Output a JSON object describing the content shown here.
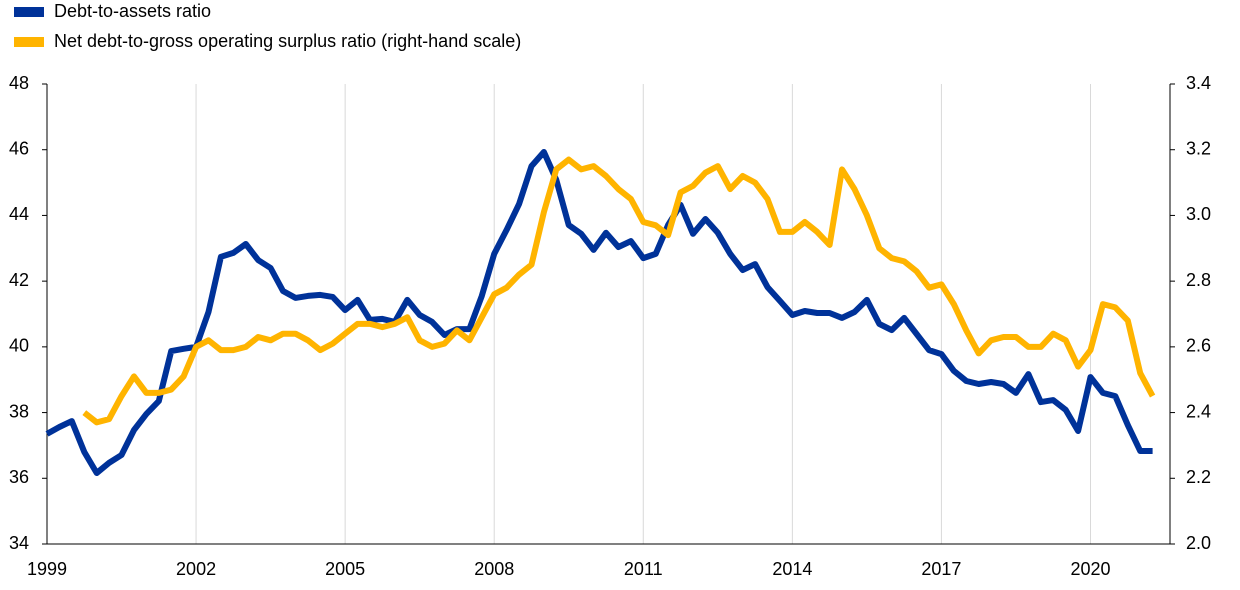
{
  "chart_data": {
    "type": "line",
    "x": [
      1999,
      1999.25,
      1999.5,
      1999.75,
      2000,
      2000.25,
      2000.5,
      2000.75,
      2001,
      2001.25,
      2001.5,
      2001.75,
      2002,
      2002.25,
      2002.5,
      2002.75,
      2003,
      2003.25,
      2003.5,
      2003.75,
      2004,
      2004.25,
      2004.5,
      2004.75,
      2005,
      2005.25,
      2005.5,
      2005.75,
      2006,
      2006.25,
      2006.5,
      2006.75,
      2007,
      2007.25,
      2007.5,
      2007.75,
      2008,
      2008.25,
      2008.5,
      2008.75,
      2009,
      2009.25,
      2009.5,
      2009.75,
      2010,
      2010.25,
      2010.5,
      2010.75,
      2011,
      2011.25,
      2011.5,
      2011.75,
      2012,
      2012.25,
      2012.5,
      2012.75,
      2013,
      2013.25,
      2013.5,
      2013.75,
      2014,
      2014.25,
      2014.5,
      2014.75,
      2015,
      2015.25,
      2015.5,
      2015.75,
      2016,
      2016.25,
      2016.5,
      2016.75,
      2017,
      2017.25,
      2017.5,
      2017.75,
      2018,
      2018.25,
      2018.5,
      2018.75,
      2019,
      2019.25,
      2019.5,
      2019.75,
      2020,
      2020.25,
      2020.5,
      2020.75,
      2021,
      2021.25
    ],
    "series": [
      {
        "name": "Debt-to-assets ratio",
        "color": "#003299",
        "values": [
          37.35,
          37.56,
          37.74,
          36.8,
          36.16,
          36.47,
          36.71,
          37.47,
          37.96,
          38.35,
          39.87,
          39.94,
          40.0,
          41.06,
          42.74,
          42.86,
          43.13,
          42.64,
          42.4,
          41.7,
          41.49,
          41.55,
          41.58,
          41.52,
          41.12,
          41.43,
          40.82,
          40.85,
          40.76,
          41.43,
          40.97,
          40.76,
          40.36,
          40.54,
          40.54,
          41.55,
          42.83,
          43.56,
          44.35,
          45.5,
          45.93,
          45.08,
          43.71,
          43.44,
          42.95,
          43.47,
          43.04,
          43.22,
          42.7,
          42.83,
          43.71,
          44.32,
          43.44,
          43.89,
          43.47,
          42.83,
          42.34,
          42.52,
          41.82,
          41.4,
          40.97,
          41.09,
          41.03,
          41.03,
          40.88,
          41.06,
          41.43,
          40.7,
          40.51,
          40.88,
          40.39,
          39.9,
          39.78,
          39.27,
          38.96,
          38.87,
          38.93,
          38.87,
          38.6,
          39.17,
          38.32,
          38.38,
          38.08,
          37.44,
          39.08,
          38.6,
          38.5,
          37.62,
          36.83,
          36.83
        ]
      },
      {
        "name": "Net debt-to-gross operating surplus ratio (right-hand scale)",
        "color": "#ffb400",
        "axis": "y2",
        "values": [
          null,
          null,
          null,
          2.4,
          2.37,
          2.38,
          2.45,
          2.51,
          2.46,
          2.46,
          2.47,
          2.51,
          2.6,
          2.62,
          2.59,
          2.59,
          2.6,
          2.63,
          2.62,
          2.64,
          2.64,
          2.62,
          2.59,
          2.61,
          2.64,
          2.67,
          2.67,
          2.66,
          2.67,
          2.69,
          2.62,
          2.6,
          2.61,
          2.65,
          2.62,
          2.69,
          2.76,
          2.78,
          2.82,
          2.85,
          3.01,
          3.14,
          3.17,
          3.14,
          3.15,
          3.12,
          3.08,
          3.05,
          2.98,
          2.97,
          2.94,
          3.07,
          3.09,
          3.13,
          3.15,
          3.08,
          3.12,
          3.1,
          3.05,
          2.95,
          2.95,
          2.98,
          2.95,
          2.91,
          3.14,
          3.08,
          3.0,
          2.9,
          2.87,
          2.86,
          2.83,
          2.78,
          2.79,
          2.73,
          2.65,
          2.58,
          2.62,
          2.63,
          2.63,
          2.6,
          2.6,
          2.64,
          2.62,
          2.54,
          2.59,
          2.73,
          2.72,
          2.68,
          2.52,
          2.45
        ]
      }
    ],
    "xlim": [
      1999,
      2021.6
    ],
    "xticks": [
      1999,
      2002,
      2005,
      2008,
      2011,
      2014,
      2017,
      2020
    ],
    "ylim": [
      34,
      48
    ],
    "yticks": [
      34,
      36,
      38,
      40,
      42,
      44,
      46,
      48
    ],
    "y2lim": [
      2.0,
      3.4
    ],
    "y2ticks": [
      {
        "value": 2,
        "label": "2.0"
      },
      2.2,
      2.4,
      2.6,
      2.8,
      {
        "value": 3,
        "label": "3.0"
      },
      3.2,
      3.4
    ],
    "grid": true,
    "legend": "top-left"
  }
}
